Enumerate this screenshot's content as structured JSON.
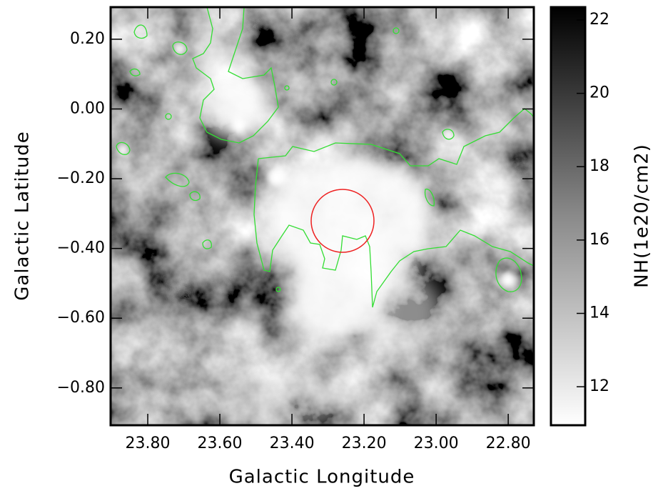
{
  "chart_data": {
    "type": "image",
    "x_label": "Galactic Longitude",
    "y_label": "Galactic Latitude",
    "colorbar_label": "NH(1e20/cm2)",
    "xlim": [
      23.903,
      22.729
    ],
    "ylim": [
      -0.907,
      0.292
    ],
    "xticks": [
      {
        "value": 23.8,
        "label": "23.80"
      },
      {
        "value": 23.6,
        "label": "23.60"
      },
      {
        "value": 23.4,
        "label": "23.40"
      },
      {
        "value": 23.2,
        "label": "23.20"
      },
      {
        "value": 23.0,
        "label": "23.00"
      },
      {
        "value": 22.8,
        "label": "22.80"
      }
    ],
    "yticks": [
      {
        "value": 0.2,
        "label": "0.20"
      },
      {
        "value": 0.0,
        "label": "0.00"
      },
      {
        "value": -0.2,
        "label": "−0.20"
      },
      {
        "value": -0.4,
        "label": "−0.40"
      },
      {
        "value": -0.6,
        "label": "−0.60"
      },
      {
        "value": -0.8,
        "label": "−0.80"
      }
    ],
    "clim": [
      10.95,
      22.35
    ],
    "cticks": [
      12,
      14,
      16,
      18,
      20,
      22
    ]
  }
}
